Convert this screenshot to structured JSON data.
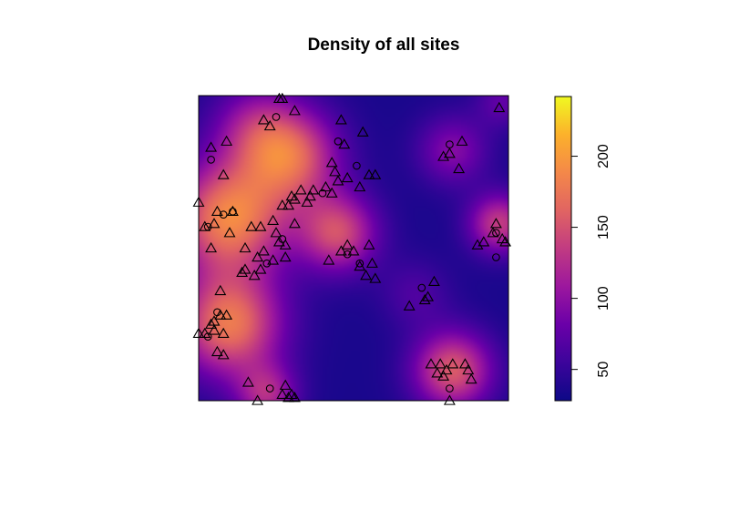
{
  "chart_data": {
    "type": "heatmap",
    "title": "Density of all sites",
    "xlabel": "",
    "ylabel": "",
    "colorbar": {
      "ticks": [
        50,
        100,
        150,
        200
      ],
      "tick_labels": [
        "50",
        "100",
        "150",
        "200"
      ],
      "range": [
        28,
        242
      ],
      "palette": [
        "#0d0887",
        "#3c049b",
        "#6a00a8",
        "#9c179e",
        "#c13b82",
        "#e16462",
        "#f48849",
        "#fcb12b",
        "#f0f921"
      ],
      "orientation": "vertical",
      "placement": "right"
    },
    "density_peaks": [
      {
        "x": 0.1,
        "y": 0.6,
        "weight": 150,
        "spread": 0.13
      },
      {
        "x": 0.1,
        "y": 0.25,
        "weight": 140,
        "spread": 0.12
      },
      {
        "x": 0.3,
        "y": 0.8,
        "weight": 120,
        "spread": 0.11
      },
      {
        "x": 0.45,
        "y": 0.55,
        "weight": 110,
        "spread": 0.09
      },
      {
        "x": 0.18,
        "y": 0.9,
        "weight": 60,
        "spread": 0.1
      },
      {
        "x": 0.82,
        "y": 0.1,
        "weight": 120,
        "spread": 0.09
      },
      {
        "x": 0.97,
        "y": 0.58,
        "weight": 100,
        "spread": 0.07
      },
      {
        "x": 0.7,
        "y": 0.35,
        "weight": 30,
        "spread": 0.08
      },
      {
        "x": 0.22,
        "y": 0.02,
        "weight": 80,
        "spread": 0.07
      },
      {
        "x": 0.82,
        "y": 0.82,
        "weight": 60,
        "spread": 0.08
      },
      {
        "x": 0.98,
        "y": 0.98,
        "weight": 40,
        "spread": 0.06
      }
    ],
    "density_base": 35,
    "series": [
      {
        "marker": "triangle",
        "points": [
          [
            0.26,
            0.99
          ],
          [
            0.27,
            0.99
          ],
          [
            0.31,
            0.95
          ],
          [
            0.21,
            0.92
          ],
          [
            0.23,
            0.9
          ],
          [
            0.46,
            0.92
          ],
          [
            0.53,
            0.88
          ],
          [
            0.09,
            0.85
          ],
          [
            0.04,
            0.83
          ],
          [
            0.47,
            0.84
          ],
          [
            0.85,
            0.85
          ],
          [
            0.79,
            0.8
          ],
          [
            0.81,
            0.81
          ],
          [
            0.84,
            0.76
          ],
          [
            0.08,
            0.74
          ],
          [
            0.43,
            0.78
          ],
          [
            0.44,
            0.75
          ],
          [
            0.48,
            0.73
          ],
          [
            0.45,
            0.72
          ],
          [
            0.55,
            0.74
          ],
          [
            0.57,
            0.74
          ],
          [
            0.37,
            0.69
          ],
          [
            0.41,
            0.7
          ],
          [
            0.43,
            0.68
          ],
          [
            0.52,
            0.7
          ],
          [
            0.36,
            0.67
          ],
          [
            0.33,
            0.69
          ],
          [
            0.31,
            0.66
          ],
          [
            0.29,
            0.64
          ],
          [
            0.3,
            0.67
          ],
          [
            0.27,
            0.64
          ],
          [
            0.0,
            0.65
          ],
          [
            0.06,
            0.62
          ],
          [
            0.11,
            0.62
          ],
          [
            0.17,
            0.57
          ],
          [
            0.2,
            0.57
          ],
          [
            0.25,
            0.55
          ],
          [
            0.31,
            0.58
          ],
          [
            0.26,
            0.52
          ],
          [
            0.28,
            0.51
          ],
          [
            0.02,
            0.57
          ],
          [
            0.05,
            0.58
          ],
          [
            0.1,
            0.55
          ],
          [
            0.04,
            0.5
          ],
          [
            0.15,
            0.5
          ],
          [
            0.21,
            0.49
          ],
          [
            0.19,
            0.47
          ],
          [
            0.24,
            0.46
          ],
          [
            0.28,
            0.47
          ],
          [
            0.48,
            0.51
          ],
          [
            0.5,
            0.49
          ],
          [
            0.55,
            0.51
          ],
          [
            0.46,
            0.49
          ],
          [
            0.42,
            0.46
          ],
          [
            0.52,
            0.44
          ],
          [
            0.56,
            0.45
          ],
          [
            0.54,
            0.41
          ],
          [
            0.15,
            0.43
          ],
          [
            0.14,
            0.42
          ],
          [
            0.07,
            0.36
          ],
          [
            0.2,
            0.43
          ],
          [
            0.18,
            0.41
          ],
          [
            0.57,
            0.4
          ],
          [
            0.76,
            0.39
          ],
          [
            0.73,
            0.33
          ],
          [
            0.68,
            0.31
          ],
          [
            0.74,
            0.34
          ],
          [
            0.92,
            0.52
          ],
          [
            0.9,
            0.51
          ],
          [
            0.96,
            0.58
          ],
          [
            0.98,
            0.53
          ],
          [
            0.95,
            0.55
          ],
          [
            0.99,
            0.52
          ],
          [
            0.07,
            0.28
          ],
          [
            0.05,
            0.26
          ],
          [
            0.04,
            0.25
          ],
          [
            0.08,
            0.22
          ],
          [
            0.05,
            0.23
          ],
          [
            0.02,
            0.22
          ],
          [
            0.0,
            0.22
          ],
          [
            0.06,
            0.16
          ],
          [
            0.08,
            0.15
          ],
          [
            0.16,
            0.06
          ],
          [
            0.28,
            0.05
          ],
          [
            0.29,
            0.01
          ],
          [
            0.3,
            0.02
          ],
          [
            0.31,
            0.01
          ],
          [
            0.27,
            0.02
          ],
          [
            0.19,
            0.0
          ],
          [
            0.75,
            0.12
          ],
          [
            0.78,
            0.12
          ],
          [
            0.8,
            0.1
          ],
          [
            0.82,
            0.12
          ],
          [
            0.86,
            0.12
          ],
          [
            0.87,
            0.1
          ],
          [
            0.77,
            0.09
          ],
          [
            0.79,
            0.08
          ],
          [
            0.88,
            0.07
          ],
          [
            0.81,
            0.0
          ],
          [
            0.97,
            0.96
          ],
          [
            0.09,
            0.28
          ],
          [
            0.24,
            0.59
          ],
          [
            0.35,
            0.65
          ]
        ]
      },
      {
        "marker": "circle",
        "points": [
          [
            0.25,
            0.93
          ],
          [
            0.45,
            0.85
          ],
          [
            0.51,
            0.77
          ],
          [
            0.04,
            0.79
          ],
          [
            0.4,
            0.68
          ],
          [
            0.27,
            0.53
          ],
          [
            0.03,
            0.57
          ],
          [
            0.11,
            0.62
          ],
          [
            0.22,
            0.45
          ],
          [
            0.52,
            0.45
          ],
          [
            0.72,
            0.37
          ],
          [
            0.96,
            0.55
          ],
          [
            0.96,
            0.47
          ],
          [
            0.06,
            0.29
          ],
          [
            0.03,
            0.21
          ],
          [
            0.23,
            0.04
          ],
          [
            0.81,
            0.04
          ],
          [
            0.81,
            0.84
          ],
          [
            0.48,
            0.48
          ],
          [
            0.08,
            0.61
          ]
        ]
      }
    ]
  }
}
